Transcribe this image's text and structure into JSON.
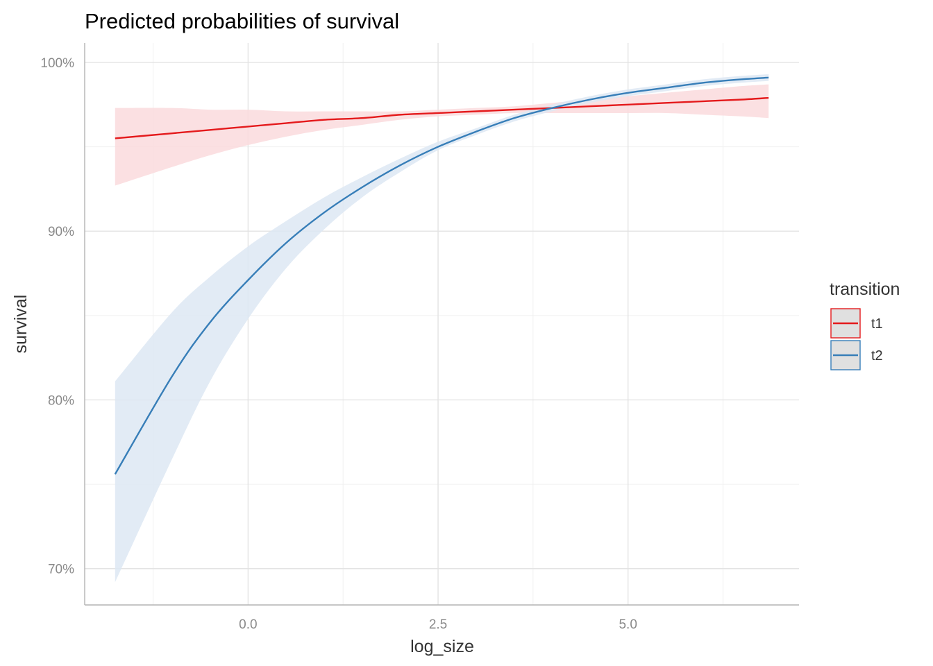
{
  "chart_data": {
    "type": "line",
    "title": "Predicted probabilities of survival",
    "xlabel": "log_size",
    "ylabel": "survival",
    "xlim": [
      -2.15,
      7.25
    ],
    "ylim": [
      0.6785,
      1.0115
    ],
    "x_ticks": [
      {
        "value": 0.0,
        "label": "0.0"
      },
      {
        "value": 2.5,
        "label": "2.5"
      },
      {
        "value": 5.0,
        "label": "5.0"
      }
    ],
    "x_minor_ticks": [
      -1.25,
      1.25,
      3.75,
      6.25
    ],
    "y_ticks": [
      {
        "value": 0.7,
        "label": "70%"
      },
      {
        "value": 0.8,
        "label": "80%"
      },
      {
        "value": 0.9,
        "label": "90%"
      },
      {
        "value": 1.0,
        "label": "100%"
      }
    ],
    "y_minor_ticks": [
      0.75,
      0.85,
      0.95
    ],
    "grid": true,
    "legend": {
      "title": "transition",
      "position": "right"
    },
    "x": [
      -1.75,
      -1.0,
      -0.5,
      0.0,
      0.5,
      1.0,
      1.5,
      2.0,
      2.5,
      3.0,
      3.5,
      4.0,
      4.5,
      5.0,
      5.5,
      6.0,
      6.5,
      6.85
    ],
    "series": [
      {
        "name": "t1",
        "color": "#e41a1c",
        "fill": "#fadadd",
        "values": [
          0.955,
          0.958,
          0.96,
          0.962,
          0.964,
          0.966,
          0.967,
          0.969,
          0.97,
          0.971,
          0.972,
          0.973,
          0.974,
          0.975,
          0.976,
          0.977,
          0.978,
          0.979
        ],
        "lower": [
          0.927,
          0.938,
          0.945,
          0.951,
          0.956,
          0.96,
          0.963,
          0.966,
          0.968,
          0.969,
          0.97,
          0.97,
          0.97,
          0.97,
          0.97,
          0.969,
          0.968,
          0.967
        ],
        "upper": [
          0.973,
          0.973,
          0.972,
          0.972,
          0.971,
          0.971,
          0.971,
          0.971,
          0.972,
          0.973,
          0.974,
          0.976,
          0.978,
          0.98,
          0.982,
          0.984,
          0.986,
          0.987
        ]
      },
      {
        "name": "t2",
        "color": "#377eb8",
        "fill": "#dde8f3",
        "values": [
          0.756,
          0.814,
          0.846,
          0.871,
          0.893,
          0.911,
          0.926,
          0.939,
          0.95,
          0.959,
          0.967,
          0.973,
          0.978,
          0.982,
          0.985,
          0.988,
          0.99,
          0.991
        ],
        "lower": [
          0.692,
          0.765,
          0.811,
          0.848,
          0.878,
          0.901,
          0.92,
          0.935,
          0.948,
          0.957,
          0.965,
          0.971,
          0.976,
          0.98,
          0.983,
          0.986,
          0.988,
          0.989
        ],
        "upper": [
          0.811,
          0.852,
          0.873,
          0.891,
          0.906,
          0.92,
          0.932,
          0.943,
          0.953,
          0.961,
          0.969,
          0.975,
          0.98,
          0.984,
          0.987,
          0.99,
          0.992,
          0.993
        ]
      }
    ]
  }
}
